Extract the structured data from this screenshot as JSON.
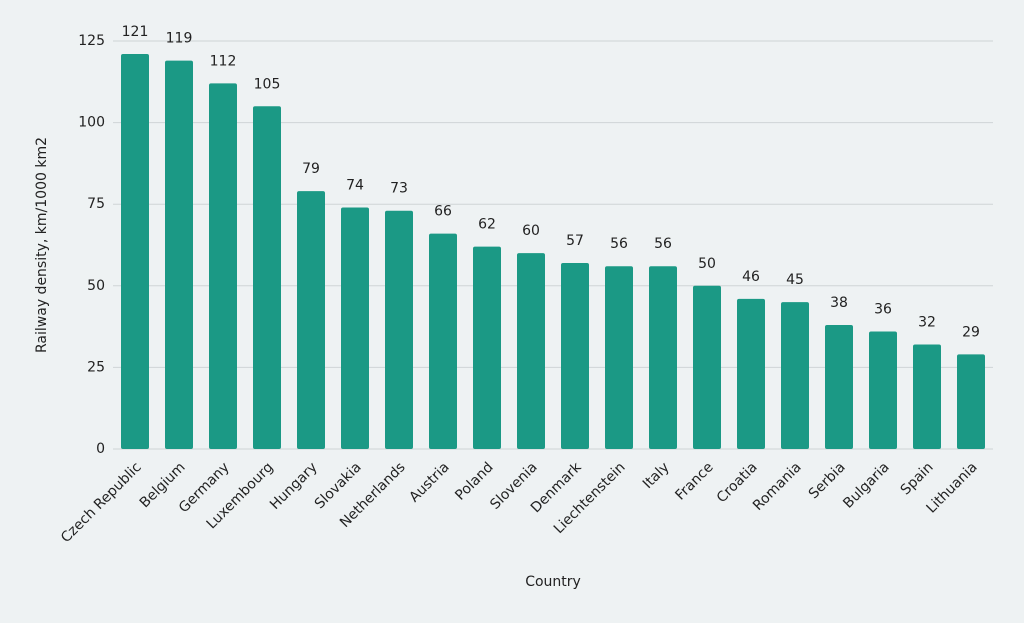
{
  "chart_data": {
    "type": "bar",
    "x_label": "Country",
    "y_label": "Railway density, km/1000 km2",
    "categories": [
      "Czech Republic",
      "Belgium",
      "Germany",
      "Luxembourg",
      "Hungary",
      "Slovakia",
      "Netherlands",
      "Austria",
      "Poland",
      "Slovenia",
      "Denmark",
      "Liechtenstein",
      "Italy",
      "France",
      "Croatia",
      "Romania",
      "Serbia",
      "Bulgaria",
      "Spain",
      "Lithuania"
    ],
    "values": [
      121,
      119,
      112,
      105,
      79,
      74,
      73,
      66,
      62,
      60,
      57,
      56,
      56,
      50,
      46,
      45,
      38,
      36,
      32,
      29
    ],
    "color": "#1b9985",
    "ylim": [
      0,
      125
    ],
    "yticks": [
      0,
      25,
      50,
      75,
      100,
      125
    ],
    "grid": true
  }
}
